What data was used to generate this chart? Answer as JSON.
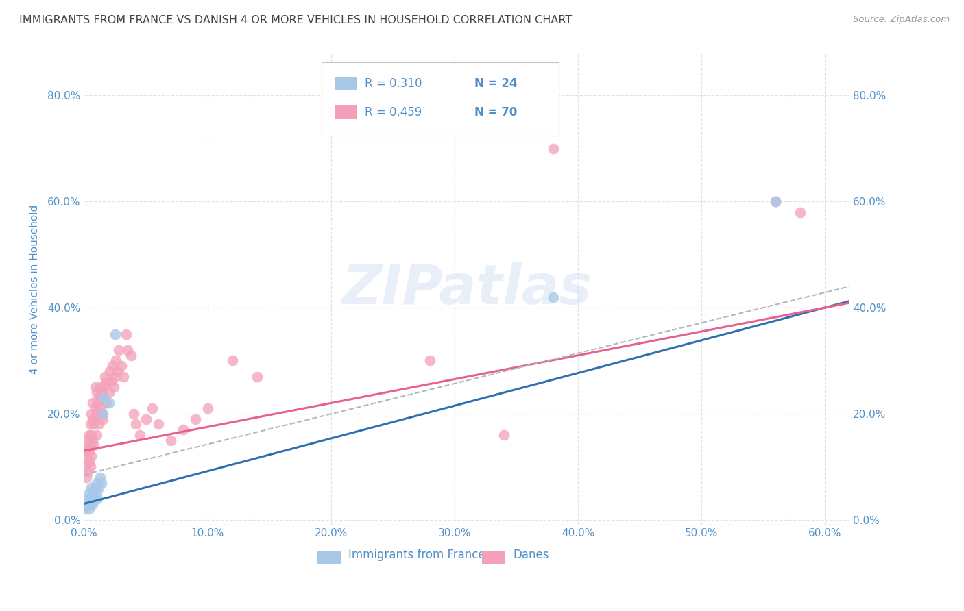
{
  "title": "IMMIGRANTS FROM FRANCE VS DANISH 4 OR MORE VEHICLES IN HOUSEHOLD CORRELATION CHART",
  "source": "Source: ZipAtlas.com",
  "xlim": [
    0.0,
    0.62
  ],
  "ylim": [
    -0.01,
    0.88
  ],
  "ylabel": "4 or more Vehicles in Household",
  "legend1_label": "Immigrants from France",
  "legend2_label": "Danes",
  "r1": "0.310",
  "n1": "24",
  "r2": "0.459",
  "n2": "70",
  "color_blue": "#a8c8e8",
  "color_pink": "#f4a0b8",
  "color_blue_line": "#3070b0",
  "color_pink_line": "#e86090",
  "color_dashed_line": "#b0b8c0",
  "axis_color": "#5090c8",
  "grid_color": "#d8e4f0",
  "france_x": [
    0.001,
    0.002,
    0.003,
    0.004,
    0.004,
    0.005,
    0.006,
    0.006,
    0.007,
    0.007,
    0.008,
    0.009,
    0.01,
    0.01,
    0.011,
    0.012,
    0.013,
    0.014,
    0.015,
    0.016,
    0.02,
    0.025,
    0.38,
    0.56
  ],
  "france_y": [
    0.02,
    0.03,
    0.04,
    0.02,
    0.05,
    0.03,
    0.06,
    0.04,
    0.05,
    0.03,
    0.04,
    0.06,
    0.05,
    0.07,
    0.04,
    0.06,
    0.08,
    0.07,
    0.2,
    0.23,
    0.22,
    0.35,
    0.42,
    0.6
  ],
  "danes_x": [
    0.001,
    0.001,
    0.002,
    0.002,
    0.002,
    0.003,
    0.003,
    0.004,
    0.004,
    0.004,
    0.005,
    0.005,
    0.005,
    0.006,
    0.006,
    0.006,
    0.007,
    0.007,
    0.007,
    0.008,
    0.008,
    0.009,
    0.009,
    0.01,
    0.01,
    0.01,
    0.011,
    0.012,
    0.012,
    0.013,
    0.013,
    0.014,
    0.014,
    0.015,
    0.015,
    0.016,
    0.017,
    0.018,
    0.018,
    0.02,
    0.021,
    0.022,
    0.023,
    0.024,
    0.025,
    0.026,
    0.027,
    0.028,
    0.03,
    0.032,
    0.034,
    0.035,
    0.038,
    0.04,
    0.042,
    0.045,
    0.05,
    0.055,
    0.06,
    0.07,
    0.08,
    0.09,
    0.1,
    0.12,
    0.14,
    0.28,
    0.34,
    0.38,
    0.56,
    0.58
  ],
  "danes_y": [
    0.1,
    0.13,
    0.08,
    0.12,
    0.15,
    0.09,
    0.14,
    0.11,
    0.16,
    0.13,
    0.1,
    0.14,
    0.18,
    0.12,
    0.16,
    0.2,
    0.15,
    0.19,
    0.22,
    0.14,
    0.18,
    0.21,
    0.25,
    0.16,
    0.2,
    0.24,
    0.22,
    0.18,
    0.23,
    0.21,
    0.25,
    0.2,
    0.24,
    0.19,
    0.23,
    0.25,
    0.27,
    0.22,
    0.26,
    0.24,
    0.28,
    0.26,
    0.29,
    0.25,
    0.27,
    0.3,
    0.28,
    0.32,
    0.29,
    0.27,
    0.35,
    0.32,
    0.31,
    0.2,
    0.18,
    0.16,
    0.19,
    0.21,
    0.18,
    0.15,
    0.17,
    0.19,
    0.21,
    0.3,
    0.27,
    0.3,
    0.16,
    0.7,
    0.6,
    0.58
  ],
  "xticks": [
    0.0,
    0.1,
    0.2,
    0.3,
    0.4,
    0.5,
    0.6
  ],
  "yticks": [
    0.0,
    0.2,
    0.4,
    0.6,
    0.8
  ],
  "xtick_labels": [
    "0.0%",
    "10.0%",
    "20.0%",
    "30.0%",
    "40.0%",
    "50.0%",
    "60.0%"
  ],
  "ytick_labels": [
    "0.0%",
    "20.0%",
    "40.0%",
    "60.0%",
    "80.0%"
  ]
}
